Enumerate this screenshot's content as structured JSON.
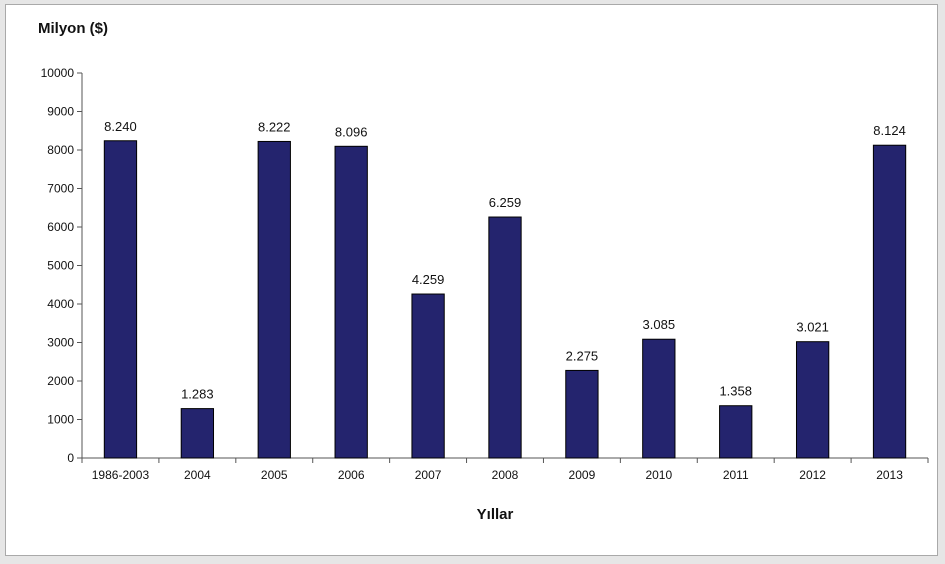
{
  "chart_data": {
    "type": "bar",
    "ylabel": "Milyon ($)",
    "xlabel": "Yıllar",
    "categories": [
      "1986-2003",
      "2004",
      "2005",
      "2006",
      "2007",
      "2008",
      "2009",
      "2010",
      "2011",
      "2012",
      "2013"
    ],
    "values": [
      8240,
      1283,
      8222,
      8096,
      4259,
      6259,
      2275,
      3085,
      1358,
      3021,
      8124
    ],
    "data_labels": [
      "8.240",
      "1.283",
      "8.222",
      "8.096",
      "4.259",
      "6.259",
      "2.275",
      "3.085",
      "1.358",
      "3.021",
      "8.124"
    ],
    "ylim": [
      0,
      10000
    ],
    "yticks": [
      0,
      1000,
      2000,
      3000,
      4000,
      5000,
      6000,
      7000,
      8000,
      9000,
      10000
    ],
    "grid": false,
    "legend": "none",
    "bar_color": "#24246e"
  }
}
